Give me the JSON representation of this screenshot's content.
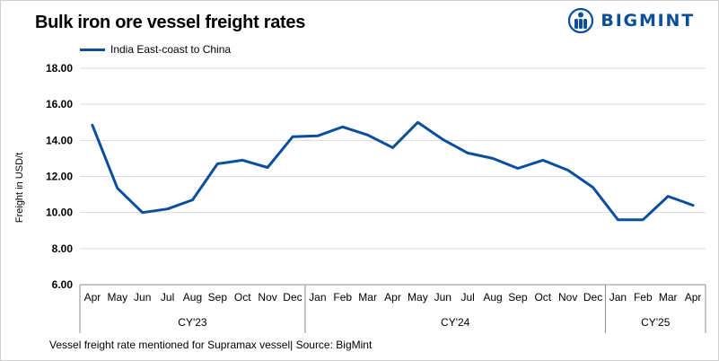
{
  "chart_data": {
    "type": "line",
    "title": "Bulk iron ore vessel freight rates",
    "xlabel": "",
    "ylabel": "Freight in USD/t",
    "ylim": [
      6,
      18
    ],
    "yticks": [
      "6.00",
      "8.00",
      "10.00",
      "12.00",
      "14.00",
      "16.00",
      "18.00"
    ],
    "grid": true,
    "legend_position": "top-left",
    "categories": [
      "Apr",
      "May",
      "Jun",
      "Jul",
      "Aug",
      "Sep",
      "Oct",
      "Nov",
      "Dec",
      "Jan",
      "Feb",
      "Mar",
      "Apr",
      "May",
      "Jun",
      "Jul",
      "Aug",
      "Sep",
      "Oct",
      "Nov",
      "Dec",
      "Jan",
      "Feb",
      "Mar",
      "Apr"
    ],
    "groups": [
      {
        "label": "CY'23",
        "count": 9
      },
      {
        "label": "CY'24",
        "count": 12
      },
      {
        "label": "CY'25",
        "count": 4
      }
    ],
    "series": [
      {
        "name": "India East-coast to China",
        "color": "#0b4f9c",
        "values": [
          14.85,
          11.35,
          10.0,
          10.2,
          10.7,
          12.7,
          12.9,
          12.5,
          14.2,
          14.25,
          14.75,
          14.3,
          13.6,
          15.0,
          14.05,
          13.3,
          13.0,
          12.45,
          12.9,
          12.35,
          11.4,
          9.6,
          9.6,
          10.9,
          10.4
        ]
      }
    ]
  },
  "brand": {
    "name": "BIGMINT",
    "color": "#0b4f9c",
    "logo_icon": "person-circle-icon"
  },
  "footnote": "Vessel freight rate mentioned for Supramax vessel| Source: BigMint"
}
